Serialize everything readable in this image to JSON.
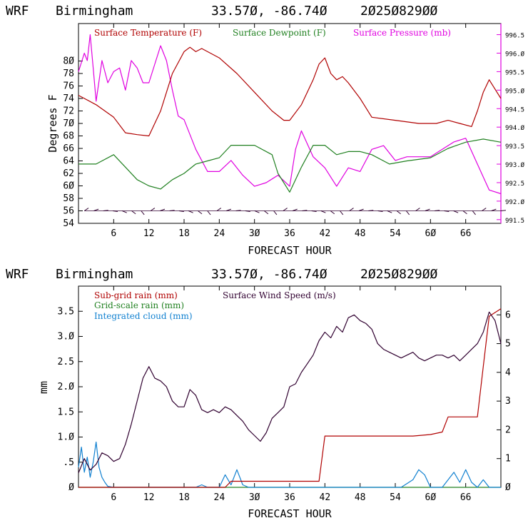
{
  "chart_data": [
    {
      "type": "line",
      "header": {
        "model": "WRF",
        "location": "Birmingham",
        "coords": "33.57Ø, -86.74Ø",
        "run": "2Ø25Ø829ØØ"
      },
      "xlabel": "FORECAST HOUR",
      "ylabel": "Degrees F",
      "xlim": [
        0,
        72
      ],
      "ylim": [
        54,
        86
      ],
      "y2lim": [
        991.4,
        996.8
      ],
      "xticks": [
        6,
        12,
        18,
        24,
        30,
        36,
        42,
        48,
        54,
        60,
        66
      ],
      "xtick_labels": [
        "6",
        "12",
        "18",
        "24",
        "3Ø",
        "36",
        "42",
        "48",
        "54",
        "6Ø",
        "66"
      ],
      "yticks": [
        54,
        56,
        58,
        60,
        62,
        64,
        66,
        68,
        70,
        72,
        74,
        76,
        78,
        80
      ],
      "ytick_labels": [
        "54",
        "56",
        "58",
        "6Ø",
        "62",
        "64",
        "66",
        "68",
        "7Ø",
        "72",
        "74",
        "76",
        "78",
        "8Ø"
      ],
      "y2ticks": [
        991.5,
        992.0,
        992.5,
        993.0,
        993.5,
        994.0,
        994.5,
        995.0,
        995.5,
        996.0,
        996.5
      ],
      "y2tick_labels": [
        "991.5",
        "992.Ø",
        "992.5",
        "993.Ø",
        "993.5",
        "994.Ø",
        "994.5",
        "995.Ø",
        "995.5",
        "996.Ø",
        "996.5"
      ],
      "legend": [
        "Surface Temperature (F)",
        "Surface Dewpoint (F)",
        "Surface Pressure (mb)"
      ],
      "colors": {
        "temperature": "#b00000",
        "dewpoint": "#208020",
        "pressure": "#e000e0",
        "wind": "#300030"
      },
      "series": [
        {
          "name": "Surface Temperature (F)",
          "axis": "left",
          "x": [
            0,
            3,
            6,
            8,
            10,
            12,
            14,
            16,
            18,
            19,
            20,
            21,
            22,
            24,
            27,
            30,
            33,
            35,
            36,
            38,
            40,
            41,
            42,
            43,
            44,
            45,
            46,
            48,
            50,
            54,
            58,
            61,
            63,
            65,
            67,
            68,
            69,
            70,
            72
          ],
          "y": [
            74.5,
            73,
            71,
            68.5,
            68.2,
            68,
            72,
            78,
            81.5,
            82.2,
            81.5,
            82,
            81.5,
            80.5,
            78,
            75,
            72,
            70.5,
            70.5,
            73,
            77,
            79.5,
            80.5,
            78,
            77,
            77.5,
            76.5,
            74,
            71,
            70.5,
            70,
            70,
            70.5,
            70,
            69.5,
            72,
            75,
            77,
            74
          ]
        },
        {
          "name": "Surface Dewpoint (F)",
          "axis": "left",
          "x": [
            0,
            3,
            6,
            8,
            10,
            12,
            14,
            16,
            18,
            20,
            22,
            24,
            26,
            28,
            30,
            33,
            34,
            36,
            38,
            40,
            42,
            44,
            46,
            48,
            50,
            53,
            56,
            60,
            63,
            66,
            69,
            72
          ],
          "y": [
            63.5,
            63.5,
            65,
            63,
            61,
            60,
            59.5,
            61,
            62,
            63.5,
            64,
            64.5,
            66.5,
            66.5,
            66.5,
            65,
            62,
            59,
            63,
            66.5,
            66.5,
            65,
            65.5,
            65.5,
            65,
            63.5,
            64,
            64.5,
            66,
            67,
            67.5,
            67
          ]
        }
      ],
      "pressure": {
        "name": "Surface Pressure (mb)",
        "axis": "right",
        "x": [
          0,
          1,
          1.5,
          2,
          2.5,
          3,
          4,
          5,
          6,
          7,
          8,
          9,
          10,
          11,
          12,
          13,
          14,
          15,
          16,
          17,
          18,
          20,
          22,
          24,
          26,
          28,
          30,
          32,
          34,
          36,
          37,
          38,
          40,
          42,
          44,
          46,
          48,
          50,
          52,
          54,
          56,
          58,
          60,
          62,
          64,
          66,
          68,
          70,
          72
        ],
        "y": [
          995.5,
          996,
          995.8,
          996.5,
          995.6,
          994.7,
          995.8,
          995.2,
          995.5,
          995.6,
          995,
          995.8,
          995.6,
          995.2,
          995.2,
          995.7,
          996.2,
          995.8,
          995,
          994.3,
          994.2,
          993.4,
          992.8,
          992.8,
          993.1,
          992.7,
          992.4,
          992.5,
          992.7,
          992.4,
          993.4,
          993.9,
          993.2,
          992.9,
          992.4,
          992.9,
          992.8,
          993.4,
          993.5,
          993.1,
          993.2,
          993.2,
          993.2,
          993.4,
          993.6,
          993.7,
          993.0,
          992.3,
          992.2
        ]
      },
      "wind_barbs": {
        "x_start": 1,
        "x_end": 72,
        "y": 56,
        "count": 45
      }
    },
    {
      "type": "line",
      "header": {
        "model": "WRF",
        "location": "Birmingham",
        "coords": "33.57Ø, -86.74Ø",
        "run": "2Ø25Ø829ØØ"
      },
      "xlabel": "FORECAST HOUR",
      "ylabel": "mm",
      "xlim": [
        0,
        72
      ],
      "ylim": [
        0,
        4.0
      ],
      "y2lim": [
        0,
        7.0
      ],
      "xticks": [
        6,
        12,
        18,
        24,
        30,
        36,
        42,
        48,
        54,
        60,
        66
      ],
      "xtick_labels": [
        "6",
        "12",
        "18",
        "24",
        "3Ø",
        "36",
        "42",
        "48",
        "54",
        "6Ø",
        "66"
      ],
      "yticks": [
        0,
        0.5,
        1.0,
        1.5,
        2.0,
        2.5,
        3.0,
        3.5
      ],
      "ytick_labels": [
        "Ø",
        ".5",
        "1.Ø",
        "1.5",
        "2.Ø",
        "2.5",
        "3.Ø",
        "3.5"
      ],
      "y2ticks": [
        0,
        1,
        2,
        3,
        4,
        5,
        6
      ],
      "y2tick_labels": [
        "Ø",
        "1",
        "2",
        "3",
        "4",
        "5",
        "6"
      ],
      "legend": [
        "Sub-grid rain (mm)",
        "Surface Wind Speed (m/s)",
        "Grid-scale rain (mm)",
        "Integrated cloud (mm)"
      ],
      "colors": {
        "subgrid": "#b00000",
        "wind": "#300030",
        "gridscale": "#208020",
        "cloud": "#1080d0"
      },
      "series": [
        {
          "name": "Sub-grid rain (mm)",
          "axis": "left",
          "x": [
            0,
            25,
            26,
            41,
            42,
            57,
            60,
            62,
            63,
            68,
            69,
            70,
            72
          ],
          "y": [
            0,
            0,
            0.12,
            0.12,
            1.02,
            1.02,
            1.05,
            1.1,
            1.4,
            1.4,
            2.4,
            3.4,
            3.55
          ]
        },
        {
          "name": "Grid-scale rain (mm)",
          "axis": "left",
          "x": [
            0,
            72
          ],
          "y": [
            0,
            0
          ]
        },
        {
          "name": "Integrated cloud (mm)",
          "axis": "left",
          "x": [
            0,
            0.5,
            1,
            1.5,
            2,
            2.5,
            3,
            3.5,
            4,
            4.5,
            5,
            6,
            20,
            21,
            22,
            24,
            25,
            26,
            27,
            28,
            29,
            30,
            55,
            57,
            58,
            59,
            60,
            62,
            64,
            65,
            66,
            67,
            68,
            69,
            70,
            71,
            72
          ],
          "y": [
            0.4,
            0.8,
            0.3,
            0.6,
            0.2,
            0.5,
            0.9,
            0.4,
            0.2,
            0.1,
            0.02,
            0,
            0,
            0.05,
            0,
            0,
            0.25,
            0.05,
            0.35,
            0.05,
            0,
            0,
            0,
            0.15,
            0.35,
            0.25,
            0,
            0,
            0.3,
            0.1,
            0.35,
            0.1,
            0,
            0.15,
            0,
            0,
            0
          ]
        },
        {
          "name": "Surface Wind Speed (m/s)",
          "axis": "right",
          "x": [
            0,
            1,
            2,
            3,
            4,
            5,
            6,
            7,
            8,
            9,
            10,
            11,
            12,
            13,
            14,
            15,
            16,
            17,
            18,
            19,
            20,
            21,
            22,
            23,
            24,
            25,
            26,
            27,
            28,
            29,
            30,
            31,
            32,
            33,
            34,
            35,
            36,
            37,
            38,
            39,
            40,
            41,
            42,
            43,
            44,
            45,
            46,
            47,
            48,
            49,
            50,
            51,
            52,
            53,
            54,
            55,
            56,
            57,
            58,
            59,
            60,
            61,
            62,
            63,
            64,
            65,
            66,
            67,
            68,
            69,
            70,
            71,
            72
          ],
          "y": [
            0.5,
            1.0,
            0.6,
            0.8,
            1.2,
            1.1,
            0.9,
            1.0,
            1.5,
            2.2,
            3.0,
            3.8,
            4.2,
            3.8,
            3.7,
            3.5,
            3.0,
            2.8,
            2.8,
            3.4,
            3.2,
            2.7,
            2.6,
            2.7,
            2.6,
            2.8,
            2.7,
            2.5,
            2.3,
            2.0,
            1.8,
            1.6,
            1.9,
            2.4,
            2.6,
            2.8,
            3.5,
            3.6,
            4.0,
            4.3,
            4.6,
            5.1,
            5.4,
            5.2,
            5.6,
            5.4,
            5.9,
            6.0,
            5.8,
            5.7,
            5.5,
            5.0,
            4.8,
            4.7,
            4.6,
            4.5,
            4.6,
            4.7,
            4.5,
            4.4,
            4.5,
            4.6,
            4.6,
            4.5,
            4.6,
            4.4,
            4.6,
            4.8,
            5.0,
            5.4,
            6.1,
            5.8,
            5.0
          ]
        }
      ]
    }
  ]
}
